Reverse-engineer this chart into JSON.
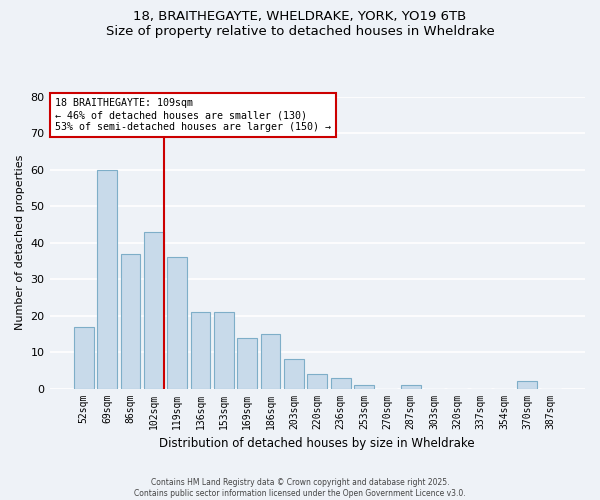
{
  "title": "18, BRAITHEGAYTE, WHELDRAKE, YORK, YO19 6TB",
  "subtitle": "Size of property relative to detached houses in Wheldrake",
  "xlabel": "Distribution of detached houses by size in Wheldrake",
  "ylabel": "Number of detached properties",
  "bar_color": "#c8daea",
  "bar_edge_color": "#7eaec8",
  "background_color": "#eef2f7",
  "grid_color": "#ffffff",
  "categories": [
    "52sqm",
    "69sqm",
    "86sqm",
    "102sqm",
    "119sqm",
    "136sqm",
    "153sqm",
    "169sqm",
    "186sqm",
    "203sqm",
    "220sqm",
    "236sqm",
    "253sqm",
    "270sqm",
    "287sqm",
    "303sqm",
    "320sqm",
    "337sqm",
    "354sqm",
    "370sqm",
    "387sqm"
  ],
  "values": [
    17,
    60,
    37,
    43,
    36,
    21,
    21,
    14,
    15,
    8,
    4,
    3,
    1,
    0,
    1,
    0,
    0,
    0,
    0,
    2,
    0
  ],
  "ylim": [
    0,
    80
  ],
  "yticks": [
    0,
    10,
    20,
    30,
    40,
    50,
    60,
    70,
    80
  ],
  "property_line_idx": 3,
  "property_line_color": "#cc0000",
  "annotation_line1": "18 BRAITHEGAYTE: 109sqm",
  "annotation_line2": "← 46% of detached houses are smaller (130)",
  "annotation_line3": "53% of semi-detached houses are larger (150) →",
  "annotation_box_color": "#ffffff",
  "annotation_box_edge": "#cc0000",
  "footer_line1": "Contains HM Land Registry data © Crown copyright and database right 2025.",
  "footer_line2": "Contains public sector information licensed under the Open Government Licence v3.0."
}
